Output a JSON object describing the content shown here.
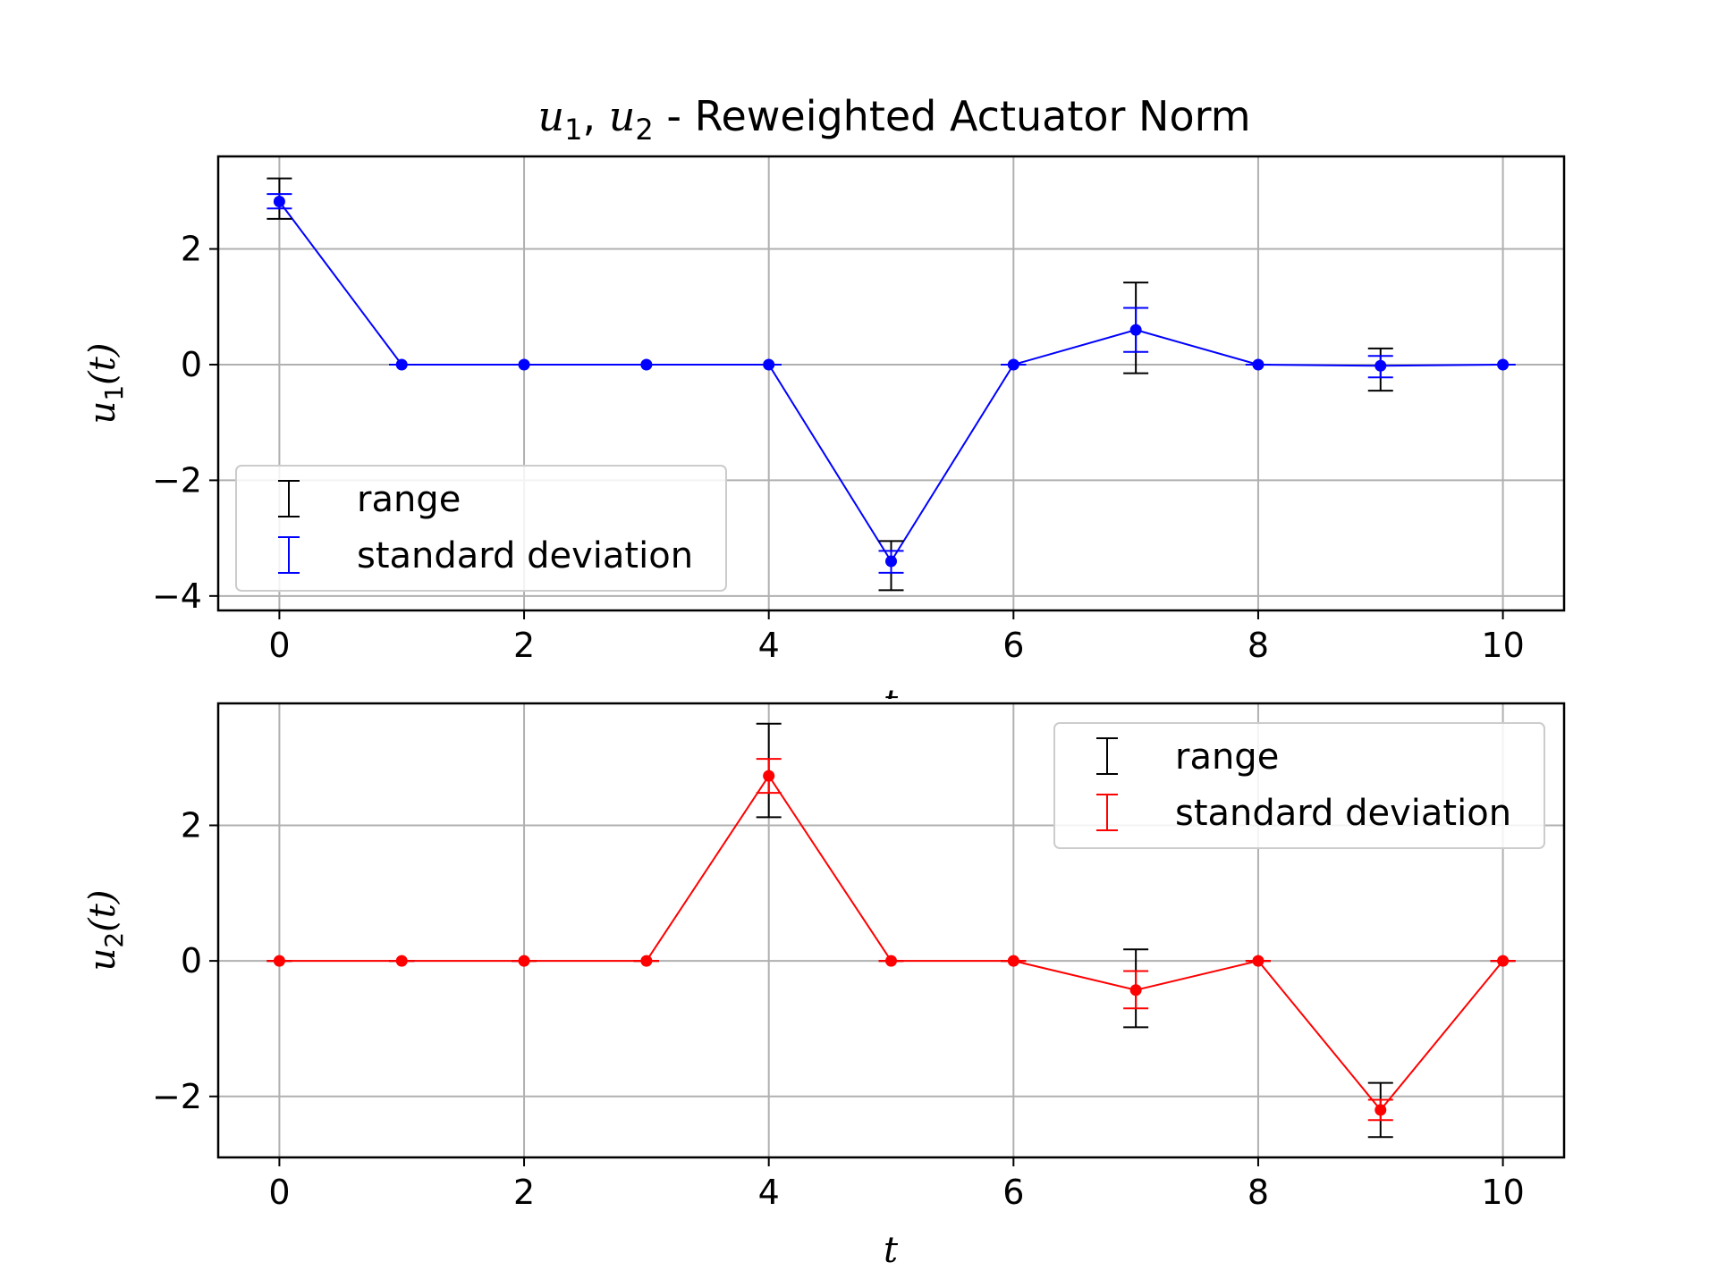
{
  "figure_title": {
    "var1": "u",
    "sub1": "1",
    "sep": ", ",
    "var2": "u",
    "sub2": "2",
    "text": " - Reweighted Actuator Norm"
  },
  "chart_data": [
    {
      "type": "line",
      "ylabel": {
        "var": "u",
        "sub": "1",
        "arg": "(t)"
      },
      "xlabel": "t",
      "xlim": [
        -0.5,
        10.5
      ],
      "ylim": [
        -4.25,
        3.6
      ],
      "xticks": [
        0,
        2,
        4,
        6,
        8,
        10
      ],
      "xtick_labels": [
        "0",
        "2",
        "4",
        "6",
        "8",
        "10"
      ],
      "yticks": [
        -4,
        -2,
        0,
        2
      ],
      "ytick_labels": [
        "−4",
        "−2",
        "0",
        "2"
      ],
      "grid": true,
      "legend_position": "lower-left",
      "legend": [
        {
          "label": "range",
          "color": "#000000"
        },
        {
          "label": "standard deviation",
          "color": "#0000ff"
        }
      ],
      "series": [
        {
          "color": "#0000ff",
          "x": [
            0,
            1,
            2,
            3,
            4,
            5,
            6,
            7,
            8,
            9,
            10
          ],
          "y": [
            2.82,
            0,
            0,
            0,
            0,
            -3.4,
            0,
            0.6,
            0,
            -0.02,
            0
          ],
          "std_low": [
            2.7,
            0,
            0,
            0,
            0,
            -3.6,
            0,
            0.22,
            0,
            -0.22,
            0
          ],
          "std_high": [
            2.95,
            0,
            0,
            0,
            0,
            -3.22,
            0,
            0.98,
            0,
            0.15,
            0
          ],
          "range_low": [
            2.52,
            0,
            0,
            0,
            0,
            -3.9,
            0,
            -0.15,
            0,
            -0.45,
            0
          ],
          "range_high": [
            3.22,
            0,
            0,
            0,
            0,
            -3.05,
            0,
            1.42,
            0,
            0.28,
            0
          ]
        }
      ]
    },
    {
      "type": "line",
      "ylabel": {
        "var": "u",
        "sub": "2",
        "arg": "(t)"
      },
      "xlabel": "t",
      "xlim": [
        -0.5,
        10.5
      ],
      "ylim": [
        -2.9,
        3.8
      ],
      "xticks": [
        0,
        2,
        4,
        6,
        8,
        10
      ],
      "xtick_labels": [
        "0",
        "2",
        "4",
        "6",
        "8",
        "10"
      ],
      "yticks": [
        -2,
        0,
        2
      ],
      "ytick_labels": [
        "−2",
        "0",
        "2"
      ],
      "grid": true,
      "legend_position": "top-right",
      "legend": [
        {
          "label": "range",
          "color": "#000000"
        },
        {
          "label": "standard deviation",
          "color": "#ff0000"
        }
      ],
      "series": [
        {
          "color": "#ff0000",
          "x": [
            0,
            1,
            2,
            3,
            4,
            5,
            6,
            7,
            8,
            9,
            10
          ],
          "y": [
            0,
            0,
            0,
            0,
            2.73,
            0,
            0,
            -0.43,
            0,
            -2.2,
            0
          ],
          "std_low": [
            0,
            0,
            0,
            0,
            2.48,
            0,
            0,
            -0.7,
            0,
            -2.35,
            0
          ],
          "std_high": [
            0,
            0,
            0,
            0,
            2.98,
            0,
            0,
            -0.15,
            0,
            -2.05,
            0
          ],
          "range_low": [
            0,
            0,
            0,
            0,
            2.12,
            0,
            0,
            -0.98,
            0,
            -2.6,
            0
          ],
          "range_high": [
            0,
            0,
            0,
            0,
            3.5,
            0,
            0,
            0.17,
            0,
            -1.8,
            0
          ]
        }
      ]
    }
  ]
}
